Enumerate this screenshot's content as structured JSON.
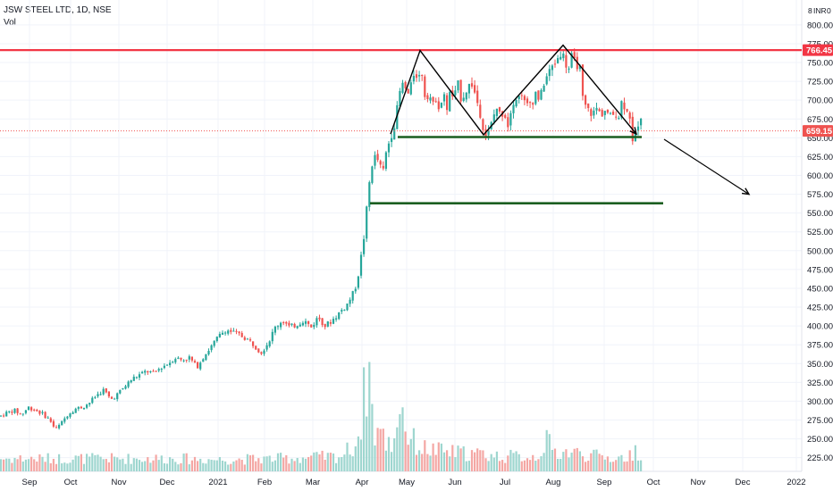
{
  "header": {
    "title": "JSW STEEL LTD, 1D, NSE",
    "volume_label": "Vol"
  },
  "axis": {
    "currency": "INR",
    "currency_prefix": "8",
    "currency_suffix": "0"
  },
  "colors": {
    "up": "#26a69a",
    "down": "#ef5350",
    "vol_up": "#9ed6cf",
    "vol_down": "#f4a7a4",
    "resistance": "#f23645",
    "support": "#1b5e20",
    "price_line": "#ef5350",
    "pattern": "#000000",
    "background": "#ffffff"
  },
  "chart_data": {
    "type": "candlestick",
    "title": "JSW STEEL LTD, 1D, NSE",
    "y_axis": {
      "ticks": [
        225,
        250,
        275,
        300,
        325,
        350,
        375,
        400,
        425,
        450,
        475,
        500,
        525,
        550,
        575,
        600,
        625,
        650,
        675,
        700,
        725,
        750,
        775,
        800
      ],
      "tick_labels": [
        "225.00",
        "250.00",
        "275.00",
        "300.00",
        "325.00",
        "350.00",
        "375.00",
        "400.00",
        "425.00",
        "450.00",
        "475.00",
        "500.00",
        "525.00",
        "550.00",
        "575.00",
        "600.00",
        "625.00",
        "650.00",
        "675.00",
        "700.00",
        "725.00",
        "750.00",
        "775.00",
        "800.00"
      ],
      "range": [
        208,
        820
      ]
    },
    "x_axis": {
      "labels": [
        "Sep",
        "Oct",
        "Nov",
        "Dec",
        "2021",
        "Feb",
        "Mar",
        "Apr",
        "May",
        "Jun",
        "Jul",
        "Aug",
        "Sep",
        "Oct",
        "Nov",
        "Dec",
        "2022"
      ]
    },
    "price_path": [
      [
        0,
        280
      ],
      [
        8,
        285
      ],
      [
        16,
        288
      ],
      [
        24,
        282
      ],
      [
        32,
        292
      ],
      [
        40,
        288
      ],
      [
        48,
        283
      ],
      [
        56,
        275
      ],
      [
        62,
        262
      ],
      [
        68,
        270
      ],
      [
        76,
        283
      ],
      [
        84,
        290
      ],
      [
        92,
        292
      ],
      [
        100,
        298
      ],
      [
        108,
        308
      ],
      [
        116,
        315
      ],
      [
        124,
        302
      ],
      [
        132,
        310
      ],
      [
        140,
        320
      ],
      [
        148,
        330
      ],
      [
        156,
        335
      ],
      [
        164,
        340
      ],
      [
        172,
        337
      ],
      [
        180,
        345
      ],
      [
        188,
        350
      ],
      [
        196,
        358
      ],
      [
        204,
        355
      ],
      [
        212,
        358
      ],
      [
        220,
        345
      ],
      [
        228,
        360
      ],
      [
        236,
        372
      ],
      [
        244,
        385
      ],
      [
        252,
        395
      ],
      [
        260,
        392
      ],
      [
        268,
        388
      ],
      [
        276,
        383
      ],
      [
        284,
        375
      ],
      [
        292,
        365
      ],
      [
        300,
        378
      ],
      [
        308,
        398
      ],
      [
        316,
        408
      ],
      [
        324,
        398
      ],
      [
        332,
        402
      ],
      [
        340,
        408
      ],
      [
        348,
        398
      ],
      [
        356,
        412
      ],
      [
        364,
        400
      ],
      [
        372,
        408
      ],
      [
        380,
        418
      ],
      [
        388,
        428
      ],
      [
        396,
        445
      ],
      [
        400,
        462
      ],
      [
        404,
        492
      ],
      [
        408,
        525
      ],
      [
        412,
        578
      ],
      [
        416,
        615
      ],
      [
        420,
        625
      ],
      [
        424,
        618
      ],
      [
        428,
        600
      ],
      [
        432,
        630
      ],
      [
        436,
        648
      ],
      [
        440,
        662
      ],
      [
        444,
        685
      ],
      [
        448,
        715
      ],
      [
        452,
        722
      ],
      [
        456,
        705
      ],
      [
        460,
        718
      ],
      [
        464,
        742
      ],
      [
        468,
        728
      ],
      [
        472,
        738
      ],
      [
        476,
        702
      ],
      [
        480,
        712
      ],
      [
        484,
        690
      ],
      [
        488,
        705
      ],
      [
        492,
        688
      ],
      [
        496,
        708
      ],
      [
        500,
        690
      ],
      [
        504,
        712
      ],
      [
        508,
        700
      ],
      [
        512,
        722
      ],
      [
        516,
        702
      ],
      [
        520,
        710
      ],
      [
        524,
        718
      ],
      [
        528,
        722
      ],
      [
        532,
        706
      ],
      [
        536,
        690
      ],
      [
        540,
        668
      ],
      [
        544,
        652
      ],
      [
        548,
        660
      ],
      [
        552,
        678
      ],
      [
        556,
        690
      ],
      [
        560,
        678
      ],
      [
        564,
        688
      ],
      [
        568,
        665
      ],
      [
        572,
        692
      ],
      [
        576,
        705
      ],
      [
        580,
        702
      ],
      [
        584,
        712
      ],
      [
        588,
        690
      ],
      [
        592,
        695
      ],
      [
        596,
        700
      ],
      [
        600,
        712
      ],
      [
        604,
        698
      ],
      [
        608,
        722
      ],
      [
        612,
        732
      ],
      [
        616,
        740
      ],
      [
        620,
        748
      ],
      [
        624,
        756
      ],
      [
        628,
        766
      ],
      [
        632,
        752
      ],
      [
        636,
        740
      ],
      [
        640,
        758
      ],
      [
        644,
        745
      ],
      [
        648,
        752
      ],
      [
        652,
        700
      ],
      [
        656,
        688
      ],
      [
        660,
        685
      ],
      [
        664,
        682
      ],
      [
        668,
        690
      ],
      [
        672,
        680
      ],
      [
        676,
        688
      ],
      [
        680,
        682
      ],
      [
        684,
        676
      ],
      [
        688,
        686
      ],
      [
        692,
        678
      ],
      [
        696,
        700
      ],
      [
        700,
        690
      ],
      [
        704,
        688
      ],
      [
        708,
        640
      ],
      [
        712,
        660
      ],
      [
        716,
        680
      ],
      [
        720,
        678
      ],
      [
        722,
        659.15
      ]
    ],
    "volume_profile": [
      [
        0,
        0.12
      ],
      [
        60,
        0.12
      ],
      [
        120,
        0.12
      ],
      [
        190,
        0.12
      ],
      [
        250,
        0.11
      ],
      [
        310,
        0.12
      ],
      [
        380,
        0.14
      ],
      [
        398,
        0.25
      ],
      [
        405,
        0.5
      ],
      [
        409,
        0.85
      ],
      [
        413,
        1.0
      ],
      [
        418,
        0.35
      ],
      [
        425,
        0.4
      ],
      [
        430,
        0.28
      ],
      [
        440,
        0.25
      ],
      [
        448,
        0.7
      ],
      [
        455,
        0.35
      ],
      [
        470,
        0.22
      ],
      [
        500,
        0.18
      ],
      [
        540,
        0.16
      ],
      [
        560,
        0.14
      ],
      [
        600,
        0.14
      ],
      [
        612,
        0.28
      ],
      [
        620,
        0.18
      ],
      [
        640,
        0.18
      ],
      [
        660,
        0.15
      ],
      [
        690,
        0.12
      ],
      [
        705,
        0.14
      ],
      [
        710,
        0.2
      ],
      [
        722,
        0.15
      ]
    ],
    "current_price": 659.15,
    "current_price_label": "659.15",
    "horizontal_levels": [
      {
        "name": "resistance",
        "price": 766.45,
        "label": "766.45",
        "from_day": 0,
        "to_day": 900
      },
      {
        "name": "neckline",
        "price": 651,
        "from_day": 445,
        "to_day": 718
      },
      {
        "name": "target",
        "price": 563,
        "from_day": 414,
        "to_day": 742
      }
    ],
    "pattern": [
      [
        437,
        655
      ],
      [
        470,
        766
      ],
      [
        541,
        654
      ],
      [
        630,
        773
      ],
      [
        712,
        655
      ]
    ],
    "projection": {
      "from": [
        743,
        648
      ],
      "to": [
        838,
        575
      ]
    },
    "grid": true,
    "legend": "none"
  }
}
